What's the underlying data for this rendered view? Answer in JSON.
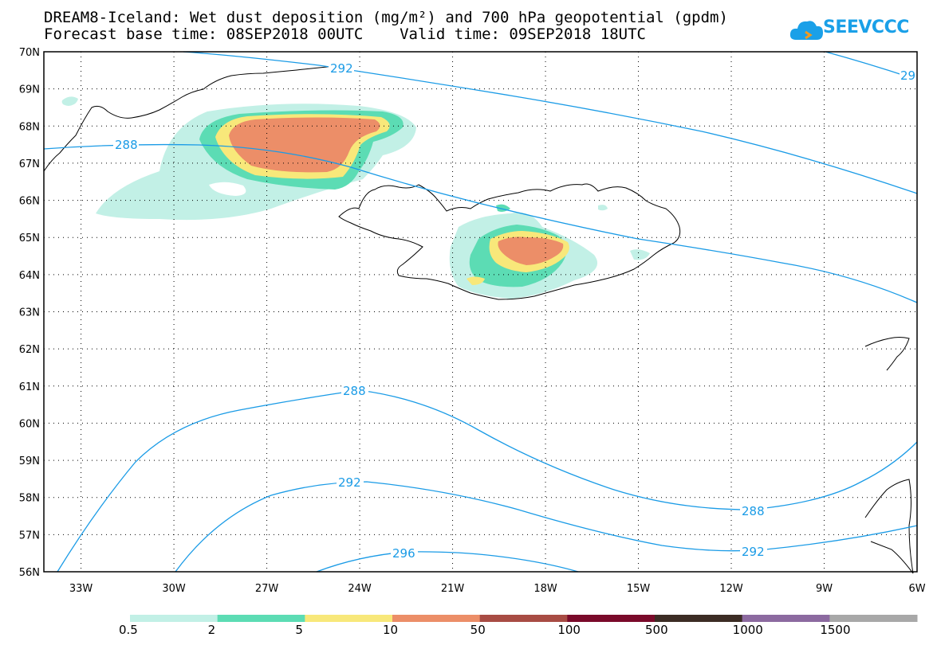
{
  "title_line1": "DREAM8-Iceland: Wet dust deposition (mg/m²) and 700 hPa geopotential (gpdm)",
  "title_line2": "Forecast base time: 08SEP2018 00UTC    Valid time: 09SEP2018 18UTC",
  "logo_text": "SEEVCCC",
  "lat_labels": [
    "70N",
    "69N",
    "68N",
    "67N",
    "66N",
    "65N",
    "64N",
    "63N",
    "62N",
    "61N",
    "60N",
    "59N",
    "58N",
    "57N",
    "56N"
  ],
  "lon_labels": [
    "33W",
    "30W",
    "27W",
    "24W",
    "21W",
    "18W",
    "15W",
    "12W",
    "9W",
    "6W"
  ],
  "contour_labels": [
    "292",
    "29",
    "288",
    "288",
    "292",
    "296",
    "288",
    "292"
  ],
  "legend": {
    "colors": [
      "#c2f0e6",
      "#5cdcb4",
      "#f8e87a",
      "#ec8e68",
      "#a84c44",
      "#7a0a2a",
      "#3c2c24",
      "#8c6aa0",
      "#a8a8a8"
    ],
    "labels": [
      "0.5",
      "2",
      "5",
      "10",
      "50",
      "100",
      "500",
      "1000",
      "1500"
    ]
  },
  "colors": {
    "contour": "#1a9be6",
    "coast": "#000000"
  }
}
